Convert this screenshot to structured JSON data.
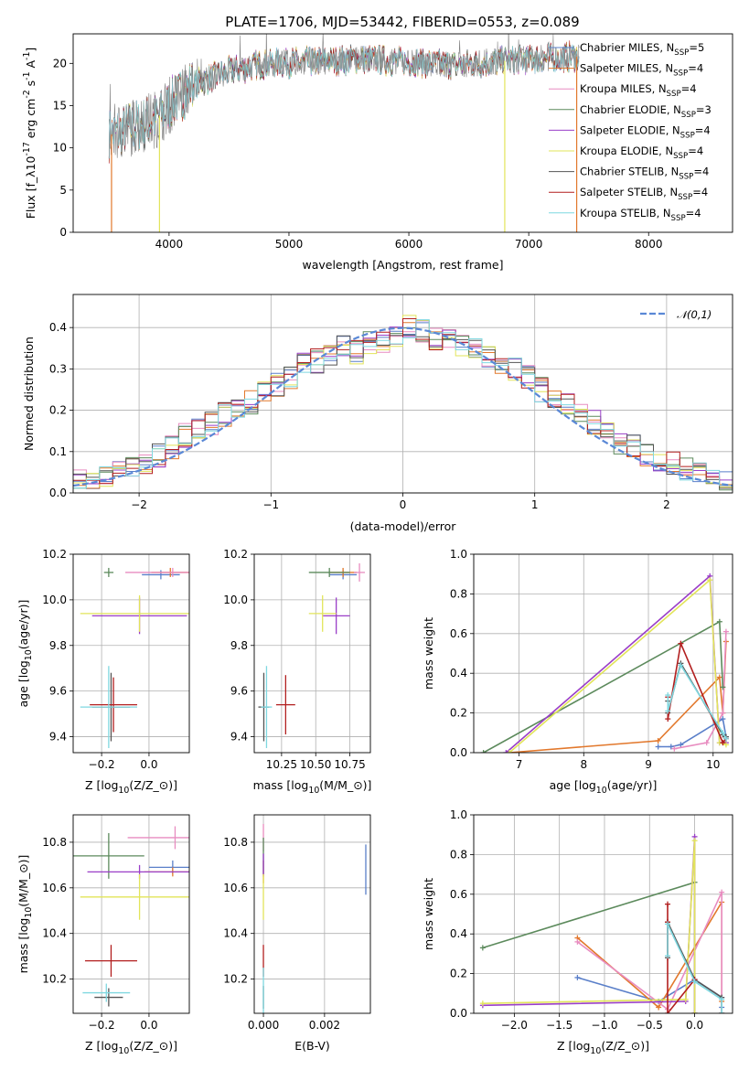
{
  "figure": {
    "title": "PLATE=1706, MJD=53442, FIBERID=0553, z=0.089"
  },
  "colors": {
    "Chabrier MILES": "#5a7fc9",
    "Salpeter MILES": "#e2782c",
    "Kroupa MILES": "#e88cc0",
    "Chabrier ELODIE": "#5c8a5c",
    "Salpeter ELODIE": "#9a3ec8",
    "Kroupa ELODIE": "#e2e45a",
    "Chabrier STELIB": "#555555",
    "Salpeter STELIB": "#b21f1f",
    "Kroupa STELIB": "#7fd8e0",
    "data": "#808080",
    "normal": "#5a88d6"
  },
  "chart_data": [
    {
      "id": "spectrum",
      "type": "line",
      "title": "PLATE=1706, MJD=53442, FIBERID=0553, z=0.089",
      "xlabel": "wavelength [Angstrom, rest frame]",
      "ylabel": "Flux [f$_\\lambda$10$^{-17}$ erg cm$^{-2}$ s$^{-1}$ A$^{-1}$]",
      "xlim": [
        3200,
        8700
      ],
      "ylim": [
        0,
        23.5
      ],
      "xticks": [
        4000,
        5000,
        6000,
        7000,
        8000
      ],
      "yticks": [
        0,
        5,
        10,
        15,
        20
      ],
      "legend_position": "upper right",
      "continuum": {
        "x": [
          3500,
          3700,
          3900,
          4000,
          4200,
          4500,
          4800,
          5200,
          5600,
          6000,
          6400,
          6800,
          7200,
          7400
        ],
        "y": [
          11.5,
          12.5,
          13.5,
          15,
          17.5,
          19,
          20,
          20.2,
          20.5,
          20.2,
          19.8,
          20.3,
          20.7,
          20.8
        ]
      },
      "series": [
        {
          "name": "Chabrier MILES, N$_{SSP}$=5"
        },
        {
          "name": "Salpeter MILES, N$_{SSP}$=4"
        },
        {
          "name": "Kroupa MILES, N$_{SSP}$=4"
        },
        {
          "name": "Chabrier ELODIE, N$_{SSP}$=3"
        },
        {
          "name": "Salpeter ELODIE, N$_{SSP}$=4"
        },
        {
          "name": "Kroupa ELODIE, N$_{SSP}$=4"
        },
        {
          "name": "Chabrier STELIB, N$_{SSP}$=4"
        },
        {
          "name": "Salpeter STELIB, N$_{SSP}$=4"
        },
        {
          "name": "Kroupa STELIB, N$_{SSP}$=4"
        }
      ],
      "drops": [
        {
          "x": 3520,
          "to": 0,
          "series": "Salpeter MILES"
        },
        {
          "x": 3920,
          "to": 0,
          "series": "Kroupa ELODIE"
        },
        {
          "x": 6800,
          "to": 0,
          "series": "Kroupa ELODIE"
        },
        {
          "x": 7400,
          "to": 0,
          "series": "Salpeter MILES"
        }
      ]
    },
    {
      "id": "residual-histogram",
      "type": "line",
      "xlabel": "(data-model)/error",
      "ylabel": "Normed distribution",
      "xlim": [
        -2.5,
        2.5
      ],
      "ylim": [
        0,
        0.48
      ],
      "xticks": [
        -2,
        -1,
        0,
        1,
        2
      ],
      "yticks": [
        0.0,
        0.1,
        0.2,
        0.3,
        0.4
      ],
      "legend": [
        "$\\mathcal{N}(0,1)$"
      ],
      "bin_width": 0.1,
      "hist_values": [
        0.03,
        0.02,
        0.04,
        0.05,
        0.06,
        0.07,
        0.09,
        0.11,
        0.14,
        0.15,
        0.17,
        0.19,
        0.2,
        0.22,
        0.24,
        0.26,
        0.28,
        0.31,
        0.32,
        0.33,
        0.35,
        0.34,
        0.36,
        0.37,
        0.38,
        0.4,
        0.39,
        0.37,
        0.38,
        0.36,
        0.35,
        0.33,
        0.31,
        0.3,
        0.28,
        0.25,
        0.23,
        0.21,
        0.19,
        0.17,
        0.14,
        0.12,
        0.11,
        0.09,
        0.08,
        0.07,
        0.06,
        0.05,
        0.04,
        0.03
      ]
    },
    {
      "id": "age-vs-Z",
      "type": "scatter",
      "xlabel": "Z [log$_{10}$($Z/Z_\\odot$)]",
      "ylabel": "age  [log$_{10}$($age/yr$)]",
      "xlim": [
        -0.32,
        0.17
      ],
      "ylim": [
        9.33,
        10.2
      ],
      "xticks": [
        -0.2,
        0.0
      ],
      "yticks": [
        9.4,
        9.6,
        9.8,
        10.0,
        10.2
      ],
      "points": [
        {
          "series": "Chabrier MILES",
          "x": 0.05,
          "y": 10.11,
          "xerr": 0.08,
          "yerr": 0.02
        },
        {
          "series": "Salpeter MILES",
          "x": 0.09,
          "y": 10.12,
          "xerr": 0.08,
          "yerr": 0.02
        },
        {
          "series": "Kroupa MILES",
          "x": 0.1,
          "y": 10.12,
          "xerr": 0.2,
          "yerr": 0.02
        },
        {
          "series": "Chabrier ELODIE",
          "x": -0.17,
          "y": 10.12,
          "xerr": 0.02,
          "yerr": 0.02
        },
        {
          "series": "Salpeter ELODIE",
          "x": -0.04,
          "y": 9.93,
          "xerr": 0.2,
          "yerr": 0.08
        },
        {
          "series": "Kroupa ELODIE",
          "x": -0.04,
          "y": 9.94,
          "xerr": 0.25,
          "yerr": 0.08
        },
        {
          "series": "Chabrier STELIB",
          "x": -0.16,
          "y": 9.53,
          "xerr": 0.08,
          "yerr": 0.15
        },
        {
          "series": "Salpeter STELIB",
          "x": -0.15,
          "y": 9.54,
          "xerr": 0.1,
          "yerr": 0.12
        },
        {
          "series": "Kroupa STELIB",
          "x": -0.17,
          "y": 9.53,
          "xerr": 0.12,
          "yerr": 0.18
        }
      ]
    },
    {
      "id": "age-vs-mass",
      "type": "scatter",
      "xlabel": "mass [log$_{10}$($M/M_\\odot$)]",
      "ylabel": "",
      "xlim": [
        10.05,
        10.9
      ],
      "ylim": [
        9.33,
        10.2
      ],
      "xticks": [
        10.25,
        10.5,
        10.75
      ],
      "yticks": [
        9.4,
        9.6,
        9.8,
        10.0,
        10.2
      ],
      "points": [
        {
          "series": "Chabrier MILES",
          "x": 10.7,
          "y": 10.11,
          "xerr": 0.1,
          "yerr": 0.02
        },
        {
          "series": "Salpeter MILES",
          "x": 10.7,
          "y": 10.12,
          "xerr": 0.1,
          "yerr": 0.02
        },
        {
          "series": "Kroupa MILES",
          "x": 10.82,
          "y": 10.12,
          "xerr": 0.04,
          "yerr": 0.04
        },
        {
          "series": "Chabrier ELODIE",
          "x": 10.6,
          "y": 10.12,
          "xerr": 0.15,
          "yerr": 0.02
        },
        {
          "series": "Salpeter ELODIE",
          "x": 10.65,
          "y": 9.93,
          "xerr": 0.1,
          "yerr": 0.08
        },
        {
          "series": "Kroupa ELODIE",
          "x": 10.55,
          "y": 9.94,
          "xerr": 0.1,
          "yerr": 0.08
        },
        {
          "series": "Chabrier STELIB",
          "x": 10.12,
          "y": 9.53,
          "xerr": 0.04,
          "yerr": 0.15
        },
        {
          "series": "Salpeter STELIB",
          "x": 10.28,
          "y": 9.54,
          "xerr": 0.07,
          "yerr": 0.13
        },
        {
          "series": "Kroupa STELIB",
          "x": 10.14,
          "y": 9.53,
          "xerr": 0.04,
          "yerr": 0.18
        }
      ]
    },
    {
      "id": "massweight-vs-age",
      "type": "line",
      "xlabel": "age  [log$_{10}$($age/yr$)]",
      "ylabel": "mass weight",
      "xlim": [
        6.3,
        10.3
      ],
      "ylim": [
        0,
        1.0
      ],
      "xticks": [
        7,
        8,
        9,
        10
      ],
      "yticks": [
        0.0,
        0.2,
        0.4,
        0.6,
        0.8,
        1.0
      ],
      "series": [
        {
          "name": "Chabrier MILES",
          "x": [
            9.15,
            9.35,
            9.5,
            10.15,
            10.2
          ],
          "y": [
            0.03,
            0.03,
            0.04,
            0.17,
            0.08
          ]
        },
        {
          "name": "Salpeter MILES",
          "x": [
            6.85,
            9.15,
            10.1,
            10.15,
            10.2
          ],
          "y": [
            0.0,
            0.06,
            0.38,
            0.2,
            0.56
          ]
        },
        {
          "name": "Kroupa MILES",
          "x": [
            9.4,
            9.9,
            10.15,
            10.2
          ],
          "y": [
            0.02,
            0.05,
            0.2,
            0.61
          ]
        },
        {
          "name": "Chabrier ELODIE",
          "x": [
            6.45,
            10.1,
            10.15
          ],
          "y": [
            0.0,
            0.66,
            0.33
          ]
        },
        {
          "name": "Salpeter ELODIE",
          "x": [
            6.8,
            9.95,
            10.1,
            10.2
          ],
          "y": [
            0.0,
            0.89,
            0.05,
            0.05
          ]
        },
        {
          "name": "Kroupa ELODIE",
          "x": [
            6.85,
            9.95,
            10.1,
            10.2
          ],
          "y": [
            0.0,
            0.87,
            0.05,
            0.04
          ]
        },
        {
          "name": "Chabrier STELIB",
          "x": [
            9.3,
            9.3,
            9.5,
            10.15,
            10.2
          ],
          "y": [
            0.26,
            0.2,
            0.45,
            0.09,
            0.08
          ]
        },
        {
          "name": "Salpeter STELIB",
          "x": [
            9.3,
            9.3,
            9.5,
            10.15,
            10.2
          ],
          "y": [
            0.28,
            0.17,
            0.55,
            0.05,
            0.07
          ]
        },
        {
          "name": "Kroupa STELIB",
          "x": [
            9.3,
            9.3,
            9.5,
            10.15,
            10.2
          ],
          "y": [
            0.29,
            0.21,
            0.44,
            0.1,
            0.07
          ]
        }
      ]
    },
    {
      "id": "mass-vs-Z",
      "type": "scatter",
      "xlabel": "Z [log$_{10}$($Z/Z_\\odot$)]",
      "ylabel": "mass [log$_{10}$($M/M_\\odot$)]",
      "xlim": [
        -0.32,
        0.17
      ],
      "ylim": [
        10.05,
        10.92
      ],
      "xticks": [
        -0.2,
        0.0
      ],
      "yticks": [
        10.2,
        10.4,
        10.6,
        10.8
      ],
      "points": [
        {
          "series": "Chabrier MILES",
          "x": 0.1,
          "y": 10.69,
          "xerr": 0.1,
          "yerr": 0.03
        },
        {
          "series": "Salpeter MILES",
          "x": 0.1,
          "y": 10.67,
          "xerr": 0.12,
          "yerr": 0.02
        },
        {
          "series": "Kroupa MILES",
          "x": 0.11,
          "y": 10.82,
          "xerr": 0.2,
          "yerr": 0.05
        },
        {
          "series": "Chabrier ELODIE",
          "x": -0.17,
          "y": 10.74,
          "xerr": 0.15,
          "yerr": 0.1
        },
        {
          "series": "Salpeter ELODIE",
          "x": -0.04,
          "y": 10.67,
          "xerr": 0.22,
          "yerr": 0.03
        },
        {
          "series": "Kroupa ELODIE",
          "x": -0.04,
          "y": 10.56,
          "xerr": 0.25,
          "yerr": 0.1
        },
        {
          "series": "Chabrier STELIB",
          "x": -0.17,
          "y": 10.12,
          "xerr": 0.06,
          "yerr": 0.04
        },
        {
          "series": "Salpeter STELIB",
          "x": -0.16,
          "y": 10.28,
          "xerr": 0.11,
          "yerr": 0.07
        },
        {
          "series": "Kroupa STELIB",
          "x": -0.18,
          "y": 10.14,
          "xerr": 0.1,
          "yerr": 0.04
        }
      ]
    },
    {
      "id": "mass-vs-EBV",
      "type": "scatter",
      "xlabel": "E(B-V)",
      "ylabel": "",
      "xlim": [
        -0.0003,
        0.0035
      ],
      "ylim": [
        10.05,
        10.92
      ],
      "xticks": [
        0.0,
        0.002
      ],
      "yticks": [
        10.2,
        10.4,
        10.6,
        10.8
      ],
      "points": [
        {
          "series": "Chabrier MILES",
          "x": 0.00335,
          "y": 10.68,
          "xerr": 0,
          "yerr": 0.11
        },
        {
          "series": "Salpeter MILES",
          "x": 0.0,
          "y": 10.67,
          "xerr": 0,
          "yerr": 0.05
        },
        {
          "series": "Kroupa MILES",
          "x": 0.0,
          "y": 10.82,
          "xerr": 0,
          "yerr": 0.06
        },
        {
          "series": "Chabrier ELODIE",
          "x": 0.0,
          "y": 10.74,
          "xerr": 0,
          "yerr": 0.08
        },
        {
          "series": "Salpeter ELODIE",
          "x": 0.0,
          "y": 10.7,
          "xerr": 0,
          "yerr": 0.05
        },
        {
          "series": "Kroupa ELODIE",
          "x": 0.0,
          "y": 10.56,
          "xerr": 0,
          "yerr": 0.1
        },
        {
          "series": "Chabrier STELIB",
          "x": 0.0,
          "y": 10.12,
          "xerr": 0,
          "yerr": 0.05
        },
        {
          "series": "Salpeter STELIB",
          "x": 0.0,
          "y": 10.28,
          "xerr": 0,
          "yerr": 0.07
        },
        {
          "series": "Kroupa STELIB",
          "x": 0.0,
          "y": 10.15,
          "xerr": 0,
          "yerr": 0.1
        }
      ]
    },
    {
      "id": "massweight-vs-Z",
      "type": "line",
      "xlabel": "Z [log$_{10}$($Z/Z_\\odot$)]",
      "ylabel": "mass weight",
      "xlim": [
        -2.45,
        0.42
      ],
      "ylim": [
        0,
        1.0
      ],
      "xticks": [
        -2.0,
        -1.5,
        -1.0,
        -0.5,
        0.0
      ],
      "yticks": [
        0.0,
        0.2,
        0.4,
        0.6,
        0.8,
        1.0
      ],
      "series": [
        {
          "name": "Chabrier MILES",
          "x": [
            -1.3,
            -0.4,
            0.0,
            0.3,
            0.3
          ],
          "y": [
            0.18,
            0.06,
            0.17,
            0.08,
            0.03
          ]
        },
        {
          "name": "Salpeter MILES",
          "x": [
            -1.3,
            -0.4,
            0.3,
            0.3,
            0.3
          ],
          "y": [
            0.38,
            0.03,
            0.56,
            0.06,
            0.0
          ]
        },
        {
          "name": "Kroupa MILES",
          "x": [
            -1.3,
            -0.3,
            0.3,
            0.3
          ],
          "y": [
            0.36,
            0.02,
            0.61,
            0.0
          ]
        },
        {
          "name": "Chabrier ELODIE",
          "x": [
            -2.35,
            0.0,
            0.0
          ],
          "y": [
            0.33,
            0.66,
            0.0
          ]
        },
        {
          "name": "Salpeter ELODIE",
          "x": [
            -2.35,
            -0.1,
            0.0,
            0.0
          ],
          "y": [
            0.04,
            0.06,
            0.89,
            0.0
          ]
        },
        {
          "name": "Kroupa ELODIE",
          "x": [
            -2.35,
            -0.1,
            0.0,
            0.0
          ],
          "y": [
            0.05,
            0.07,
            0.87,
            0.0
          ]
        },
        {
          "name": "Chabrier STELIB",
          "x": [
            -0.3,
            -0.3,
            0.0,
            0.3,
            0.3
          ],
          "y": [
            0.28,
            0.46,
            0.17,
            0.08,
            0.0
          ]
        },
        {
          "name": "Salpeter STELIB",
          "x": [
            -0.3,
            -0.3,
            -0.3,
            0.0
          ],
          "y": [
            0.55,
            0.46,
            0.0,
            0.17
          ]
        },
        {
          "name": "Kroupa STELIB",
          "x": [
            -0.3,
            -0.3,
            0.0,
            0.3,
            0.3
          ],
          "y": [
            0.29,
            0.45,
            0.16,
            0.07,
            0.0
          ]
        }
      ]
    }
  ]
}
